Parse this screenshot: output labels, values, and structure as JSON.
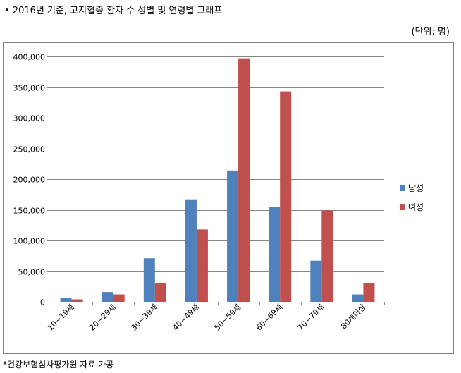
{
  "header": {
    "title": "• 2016년 기준, 고지혈증 환자 수 성별 및 연령별 그래프",
    "unit": "(단위: 명)"
  },
  "footer": {
    "source": "*건강보험심사평가원 자료 가공"
  },
  "chart_data": {
    "type": "bar",
    "title": "",
    "xlabel": "",
    "ylabel": "",
    "categories": [
      "10~19세",
      "20~29세",
      "30~39세",
      "40~49세",
      "50~59세",
      "60~69세",
      "70~79세",
      "80세이상"
    ],
    "series": [
      {
        "name": "남성",
        "color": "#4f81bd",
        "values": [
          6000,
          16000,
          71000,
          167000,
          214000,
          154000,
          67000,
          12000
        ]
      },
      {
        "name": "여성",
        "color": "#c0504d",
        "values": [
          4000,
          12000,
          31000,
          118000,
          397000,
          343000,
          149000,
          31000
        ]
      }
    ],
    "ylim": [
      0,
      400000
    ],
    "yticks": [
      0,
      50000,
      100000,
      150000,
      200000,
      250000,
      300000,
      350000,
      400000
    ],
    "ytick_labels": [
      "0",
      "50,000",
      "100,000",
      "150,000",
      "200,000",
      "250,000",
      "300,000",
      "350,000",
      "400,000"
    ],
    "grid": true,
    "legend_position": "right"
  }
}
